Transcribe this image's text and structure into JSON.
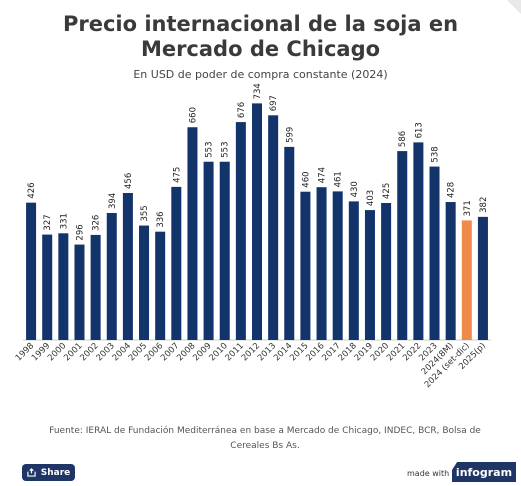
{
  "colors": {
    "bar": "#12346b",
    "highlight": "#f08a4b",
    "baseline": "#cccccc"
  },
  "header": {
    "title_line1": "Precio internacional de la soja en",
    "title_line2": "Mercado de Chicago",
    "subtitle": "En USD de poder de compra constante (2024)"
  },
  "chart_data": {
    "type": "bar",
    "title": "Precio internacional de la soja en Mercado de Chicago",
    "subtitle": "En USD de poder de compra constante (2024)",
    "categories": [
      "1998",
      "1999",
      "2000",
      "2001",
      "2002",
      "2003",
      "2004",
      "2005",
      "2006",
      "2007",
      "2008",
      "2009",
      "2010",
      "2011",
      "2012",
      "2013",
      "2014",
      "2015",
      "2016",
      "2017",
      "2018",
      "2019",
      "2020",
      "2021",
      "2022",
      "2023",
      "2024(8M)",
      "2024 (set-dic)",
      "2025(p)"
    ],
    "values": [
      426,
      327,
      331,
      296,
      326,
      394,
      456,
      355,
      336,
      475,
      660,
      553,
      553,
      676,
      734,
      697,
      599,
      460,
      474,
      461,
      430,
      403,
      425,
      586,
      613,
      538,
      428,
      371,
      382
    ],
    "highlight_index": 27,
    "ylim": [
      0,
      760
    ],
    "grid": false,
    "legend": "none",
    "data_labels": true
  },
  "footer": {
    "source": "Fuente: IERAL de Fundación Mediterránea en base a Mercado de Chicago, INDEC, BCR, Bolsa de Cereales Bs As.",
    "share_label": "Share",
    "made_with": "made with",
    "brand": "infogram"
  }
}
